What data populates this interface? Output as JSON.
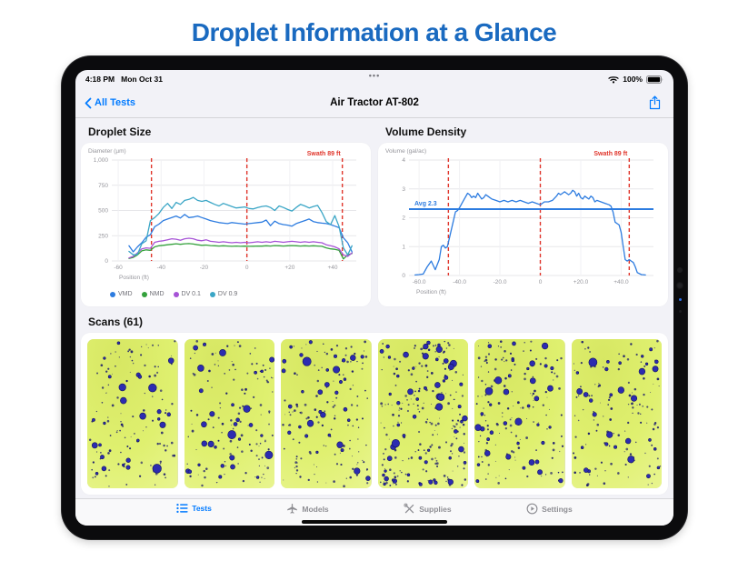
{
  "page": {
    "title": "Droplet Information at a Glance"
  },
  "status_bar": {
    "time": "4:18 PM",
    "date": "Mon Oct 31",
    "handle": "•••",
    "battery": "100%"
  },
  "nav_bar": {
    "back": "All Tests",
    "title": "Air Tractor AT-802"
  },
  "tab_bar": {
    "items": [
      {
        "label": "Tests",
        "active": true
      },
      {
        "label": "Models",
        "active": false
      },
      {
        "label": "Supplies",
        "active": false
      },
      {
        "label": "Settings",
        "active": false
      }
    ]
  },
  "scans": {
    "heading": "Scans (61)",
    "tiles": [
      {
        "seed": 3,
        "large_dots": 26,
        "small_dots": 110
      },
      {
        "seed": 7,
        "large_dots": 30,
        "small_dots": 120
      },
      {
        "seed": 11,
        "large_dots": 34,
        "small_dots": 130
      },
      {
        "seed": 19,
        "large_dots": 55,
        "small_dots": 195
      },
      {
        "seed": 23,
        "large_dots": 38,
        "small_dots": 140
      },
      {
        "seed": 29,
        "large_dots": 30,
        "small_dots": 115
      }
    ]
  },
  "colors": {
    "accent_blue": "#007aff",
    "title_blue": "#1a6ac0",
    "swath_red": "#e0352b",
    "grid": "#e7e7ea",
    "grid_light": "#f1f1f4",
    "tick_text": "#96969c",
    "scan_paper": "#dff06f",
    "scan_dot": "#2c2cb0"
  },
  "chart_data": [
    {
      "type": "line",
      "title": "Droplet Size",
      "ylabel": "Diameter (µm)",
      "xlabel": "Position (ft)",
      "ylim": [
        0,
        1000
      ],
      "xlim": [
        -63,
        51
      ],
      "yticks": [
        0,
        250,
        500,
        750,
        1000
      ],
      "ytick_labels": [
        "0",
        "250",
        "500",
        "750",
        "1,000"
      ],
      "xticks": [
        -60,
        -40,
        -20,
        0,
        20,
        40
      ],
      "xtick_labels": [
        "-60",
        "-40",
        "-20",
        "0",
        "+20",
        "+40"
      ],
      "grid": true,
      "legend_position": "bottom",
      "swath_label": "Swath 89 ft",
      "swath_lines": [
        -44.5,
        0,
        44.5
      ],
      "x": [
        -55,
        -53,
        -51,
        -49,
        -47,
        -45,
        -43,
        -41,
        -39,
        -37,
        -35,
        -33,
        -31,
        -29,
        -27,
        -25,
        -23,
        -21,
        -19,
        -17,
        -15,
        -13,
        -11,
        -9,
        -7,
        -5,
        -3,
        -1,
        1,
        3,
        5,
        7,
        9,
        11,
        13,
        15,
        17,
        19,
        21,
        23,
        25,
        27,
        29,
        31,
        33,
        35,
        37,
        39,
        41,
        43,
        45,
        47,
        49
      ],
      "series": [
        {
          "name": "VMD",
          "color": "#2d7ce0",
          "values": [
            150,
            90,
            140,
            180,
            235,
            260,
            340,
            365,
            400,
            415,
            430,
            445,
            425,
            460,
            430,
            435,
            445,
            430,
            415,
            400,
            390,
            380,
            375,
            370,
            380,
            375,
            370,
            365,
            370,
            375,
            380,
            385,
            405,
            350,
            395,
            370,
            360,
            355,
            345,
            370,
            385,
            400,
            415,
            390,
            380,
            375,
            370,
            360,
            345,
            330,
            230,
            180,
            90
          ]
        },
        {
          "name": "NMD",
          "color": "#34a13c",
          "values": [
            25,
            35,
            60,
            100,
            110,
            105,
            140,
            150,
            155,
            160,
            165,
            170,
            165,
            170,
            172,
            168,
            160,
            155,
            158,
            152,
            150,
            148,
            150,
            148,
            145,
            148,
            145,
            147,
            145,
            146,
            148,
            147,
            150,
            148,
            152,
            150,
            148,
            150,
            152,
            150,
            148,
            150,
            148,
            150,
            148,
            145,
            130,
            120,
            115,
            105,
            20,
            60,
            75
          ]
        },
        {
          "name": "DV 0.1",
          "color": "#a653d6",
          "values": [
            30,
            45,
            80,
            120,
            130,
            125,
            185,
            195,
            200,
            210,
            220,
            215,
            205,
            220,
            225,
            220,
            205,
            200,
            210,
            195,
            190,
            185,
            190,
            185,
            180,
            185,
            180,
            185,
            180,
            185,
            190,
            185,
            190,
            185,
            195,
            190,
            185,
            190,
            195,
            190,
            185,
            190,
            185,
            190,
            185,
            180,
            160,
            150,
            140,
            120,
            60,
            45,
            80
          ]
        },
        {
          "name": "DV 0.9",
          "color": "#3ba6c6",
          "values": [
            95,
            60,
            65,
            170,
            200,
            400,
            430,
            470,
            530,
            570,
            520,
            580,
            560,
            600,
            610,
            630,
            600,
            590,
            600,
            580,
            560,
            545,
            570,
            555,
            540,
            525,
            530,
            535,
            520,
            515,
            530,
            540,
            545,
            530,
            500,
            545,
            530,
            510,
            495,
            530,
            560,
            545,
            525,
            540,
            550,
            480,
            390,
            360,
            450,
            340,
            130,
            60,
            150
          ]
        }
      ]
    },
    {
      "type": "line",
      "title": "Volume Density",
      "ylabel": "Volume (gal/ac)",
      "xlabel": "Position (ft)",
      "ylim": [
        0,
        4
      ],
      "xlim": [
        -65,
        56
      ],
      "yticks": [
        0,
        1,
        2,
        3,
        4
      ],
      "ytick_labels": [
        "0",
        "1",
        "2",
        "3",
        "4"
      ],
      "xticks": [
        -60,
        -40,
        -20,
        0,
        20,
        40
      ],
      "xtick_labels": [
        "-60.0",
        "-40.0",
        "-20.0",
        "0",
        "+20.0",
        "+40.0"
      ],
      "grid": true,
      "legend_position": "none",
      "swath_label": "Swath 89 ft",
      "swath_lines": [
        -45.5,
        0,
        44
      ],
      "avg": {
        "label": "Avg 2.3",
        "value": 2.3,
        "color": "#2d7ce0"
      },
      "x": [
        -62,
        -60,
        -58,
        -56,
        -54,
        -53,
        -52,
        -50,
        -49,
        -48,
        -47,
        -46,
        -45,
        -44,
        -43,
        -42,
        -41,
        -40,
        -38,
        -36,
        -35,
        -34,
        -33,
        -32,
        -31,
        -30,
        -29,
        -28,
        -27,
        -26,
        -25,
        -24,
        -22,
        -20,
        -18,
        -16,
        -14,
        -12,
        -10,
        -8,
        -6,
        -4,
        -2,
        0,
        2,
        4,
        6,
        8,
        9,
        10,
        11,
        12,
        13,
        14,
        15,
        16,
        17,
        18,
        19,
        20,
        21,
        22,
        23,
        24,
        25,
        26,
        27,
        28,
        30,
        32,
        34,
        35,
        36,
        37,
        38,
        39,
        40,
        41,
        42,
        43,
        44,
        45,
        46,
        47,
        48,
        50,
        52
      ],
      "series": [
        {
          "name": "Volume",
          "color": "#2d7ce0",
          "values": [
            0.02,
            0.03,
            0.05,
            0.3,
            0.5,
            0.35,
            0.2,
            0.55,
            1.0,
            1.05,
            0.95,
            1.0,
            1.3,
            1.6,
            1.9,
            2.2,
            2.25,
            2.35,
            2.6,
            2.85,
            2.8,
            2.7,
            2.75,
            2.7,
            2.85,
            2.75,
            2.65,
            2.7,
            2.8,
            2.75,
            2.7,
            2.65,
            2.6,
            2.55,
            2.6,
            2.55,
            2.6,
            2.55,
            2.6,
            2.55,
            2.5,
            2.55,
            2.5,
            2.45,
            2.55,
            2.55,
            2.6,
            2.75,
            2.85,
            2.8,
            2.85,
            2.9,
            2.85,
            2.8,
            2.85,
            2.95,
            2.9,
            2.75,
            2.85,
            2.7,
            2.65,
            2.75,
            2.7,
            2.65,
            2.75,
            2.7,
            2.55,
            2.6,
            2.55,
            2.5,
            2.45,
            2.4,
            2.2,
            1.85,
            1.8,
            1.75,
            1.5,
            1.0,
            0.55,
            0.5,
            0.55,
            0.5,
            0.45,
            0.3,
            0.1,
            0.03,
            0.02
          ]
        }
      ]
    }
  ]
}
